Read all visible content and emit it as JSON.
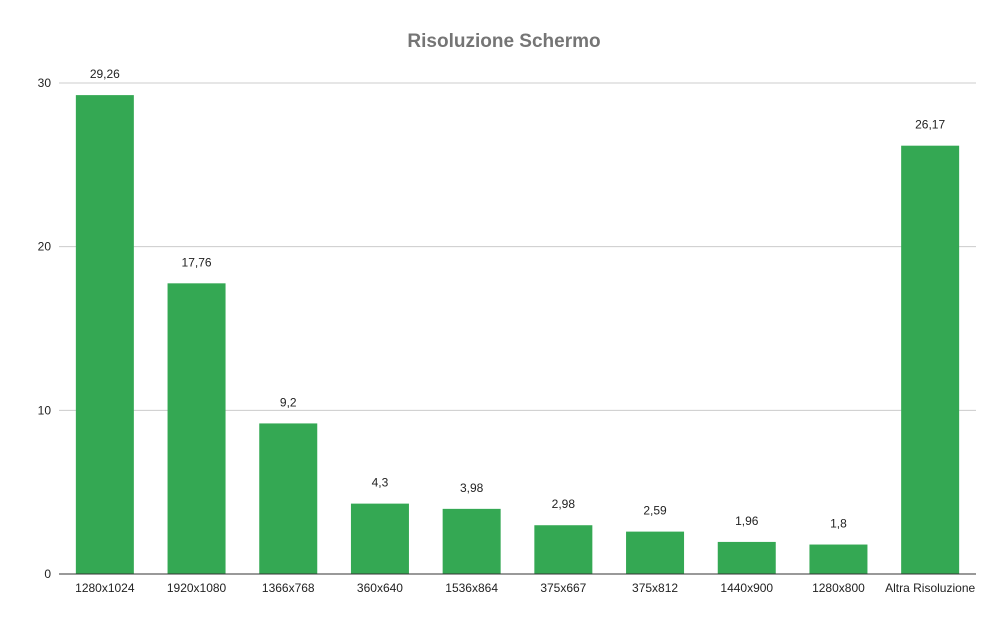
{
  "chart_data": {
    "type": "bar",
    "title": "Risoluzione Schermo",
    "xlabel": "",
    "ylabel": "",
    "categories": [
      "1280x1024",
      "1920x1080",
      "1366x768",
      "360x640",
      "1536x864",
      "375x667",
      "375x812",
      "1440x900",
      "1280x800",
      "Altra Risoluzione"
    ],
    "values": [
      29.26,
      17.76,
      9.2,
      4.3,
      3.98,
      2.98,
      2.59,
      1.96,
      1.8,
      26.17
    ],
    "data_labels": [
      "29,26",
      "17,76",
      "9,2",
      "4,3",
      "3,98",
      "2,98",
      "2,59",
      "1,96",
      "1,8",
      "26,17"
    ],
    "ylim": [
      0,
      30
    ],
    "yticks": [
      "0",
      "10",
      "20",
      "30"
    ],
    "ytick_values": [
      0,
      10,
      20,
      30
    ],
    "grid": true,
    "legend": "none",
    "bar_color": "#34a853",
    "grid_color": "#cccccc",
    "axis_color": "#333333",
    "title_color": "#757575"
  }
}
